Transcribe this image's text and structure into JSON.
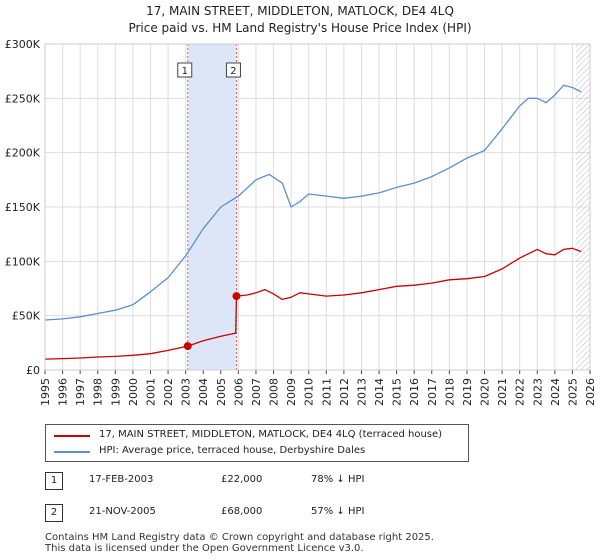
{
  "header": {
    "title": "17, MAIN STREET, MIDDLETON, MATLOCK, DE4 4LQ",
    "subtitle": "Price paid vs. HM Land Registry's House Price Index (HPI)"
  },
  "chart_data": {
    "type": "line",
    "title": "17, MAIN STREET, MIDDLETON, MATLOCK, DE4 4LQ",
    "subtitle": "Price paid vs. HM Land Registry's House Price Index (HPI)",
    "xlabel": "",
    "ylabel": "",
    "xlim": [
      1995,
      2026
    ],
    "ylim": [
      0,
      300000
    ],
    "grid": true,
    "y_ticks": [
      {
        "value": 0,
        "label": "£0"
      },
      {
        "value": 50000,
        "label": "£50K"
      },
      {
        "value": 100000,
        "label": "£100K"
      },
      {
        "value": 150000,
        "label": "£150K"
      },
      {
        "value": 200000,
        "label": "£200K"
      },
      {
        "value": 250000,
        "label": "£250K"
      },
      {
        "value": 300000,
        "label": "£300K"
      }
    ],
    "x_ticks": [
      "1995",
      "1996",
      "1997",
      "1998",
      "1999",
      "2000",
      "2001",
      "2002",
      "2003",
      "2004",
      "2005",
      "2006",
      "2007",
      "2008",
      "2009",
      "2010",
      "2011",
      "2012",
      "2013",
      "2014",
      "2015",
      "2016",
      "2017",
      "2018",
      "2019",
      "2020",
      "2021",
      "2022",
      "2023",
      "2024",
      "2025",
      "2026"
    ],
    "shaded_region": {
      "from": 2003.12,
      "to": 2005.89,
      "color": "#dde6f7"
    },
    "hatched_region": {
      "from": 2025.2,
      "to": 2026
    },
    "series": [
      {
        "name": "17, MAIN STREET, MIDDLETON, MATLOCK, DE4 4LQ (terraced house)",
        "color": "#cc0000",
        "x": [
          1995,
          1996,
          1997,
          1998,
          1999,
          2000,
          2001,
          2002,
          2003.12,
          2004,
          2005,
          2005.85,
          2005.89,
          2006.5,
          2007,
          2007.5,
          2008,
          2008.5,
          2009,
          2009.5,
          2010,
          2011,
          2012,
          2013,
          2014,
          2015,
          2016,
          2017,
          2018,
          2019,
          2020,
          2021,
          2022,
          2022.5,
          2023,
          2023.5,
          2024,
          2024.5,
          2025,
          2025.5
        ],
        "values": [
          10000,
          10500,
          11000,
          12000,
          12500,
          13500,
          15000,
          18000,
          22000,
          27000,
          31000,
          34000,
          68000,
          69000,
          71000,
          74000,
          70000,
          65000,
          67000,
          71000,
          70000,
          68000,
          69000,
          71000,
          74000,
          77000,
          78000,
          80000,
          83000,
          84000,
          86000,
          93000,
          103000,
          107000,
          111000,
          107000,
          106000,
          111000,
          112000,
          109000
        ]
      },
      {
        "name": "HPI: Average price, terraced house, Derbyshire Dales",
        "color": "#5b8fd4",
        "x": [
          1995,
          1996,
          1997,
          1998,
          1999,
          2000,
          2001,
          2002,
          2003,
          2004,
          2005,
          2006,
          2007,
          2007.75,
          2008.5,
          2009,
          2009.5,
          2010,
          2011,
          2012,
          2013,
          2014,
          2015,
          2016,
          2017,
          2018,
          2019,
          2020,
          2021,
          2022,
          2022.5,
          2023,
          2023.5,
          2024,
          2024.5,
          2025,
          2025.5
        ],
        "values": [
          46000,
          47000,
          49000,
          52000,
          55000,
          60000,
          72000,
          85000,
          105000,
          130000,
          150000,
          160000,
          175000,
          180000,
          172000,
          150000,
          155000,
          162000,
          160000,
          158000,
          160000,
          163000,
          168000,
          172000,
          178000,
          186000,
          195000,
          202000,
          222000,
          243000,
          250000,
          250000,
          246000,
          253000,
          262000,
          260000,
          256000
        ]
      }
    ],
    "transactions": [
      {
        "id": "1",
        "x": 2003.12,
        "value": 22000,
        "date": "17-FEB-2003",
        "price": "£22,000",
        "hpi_note": "78% ↓ HPI"
      },
      {
        "id": "2",
        "x": 2005.89,
        "value": 68000,
        "date": "21-NOV-2005",
        "price": "£68,000",
        "hpi_note": "57% ↓ HPI"
      }
    ],
    "legend": "below"
  },
  "footer": {
    "line1": "Contains HM Land Registry data © Crown copyright and database right 2025.",
    "line2": "This data is licensed under the Open Government Licence v3.0."
  }
}
